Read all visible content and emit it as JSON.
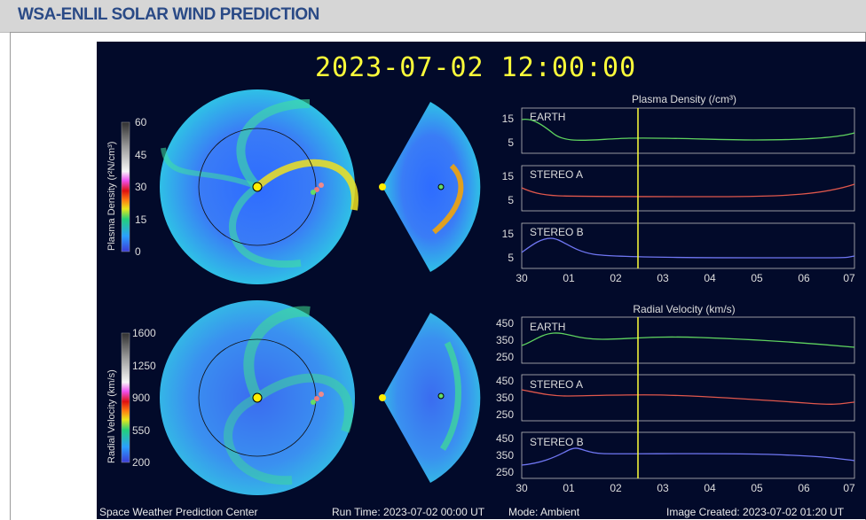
{
  "header": {
    "title": "WSA-ENLIL SOLAR WIND PREDICTION"
  },
  "panel": {
    "timestamp": "2023-07-02 12:00:00",
    "footer": {
      "center": "Space Weather Prediction Center",
      "run_time": "Run Time: 2023-07-02 00:00 UT",
      "mode": "Mode: Ambient",
      "image_created": "Image Created: 2023-07-02 01:20 UT"
    },
    "density_colorbar": {
      "label": "Plasma Density (r²N/cm³)",
      "ticks": [
        "60",
        "45",
        "30",
        "15",
        "0"
      ]
    },
    "velocity_colorbar": {
      "label": "Radial Velocity (km/s)",
      "ticks": [
        "1600",
        "1250",
        "900",
        "550",
        "200"
      ]
    },
    "density_plots": {
      "title": "Plasma Density (/cm³)",
      "rows": [
        {
          "name": "EARTH",
          "ticks": [
            "15",
            "5"
          ],
          "color": "#5fd35f"
        },
        {
          "name": "STEREO A",
          "ticks": [
            "15",
            "5"
          ],
          "color": "#e0574c"
        },
        {
          "name": "STEREO B",
          "ticks": [
            "15",
            "5"
          ],
          "color": "#6f76f2"
        }
      ],
      "xticks": [
        "30",
        "01",
        "02",
        "03",
        "04",
        "05",
        "06",
        "07"
      ]
    },
    "velocity_plots": {
      "title": "Radial Velocity (km/s)",
      "rows": [
        {
          "name": "EARTH",
          "ticks": [
            "450",
            "350",
            "250"
          ],
          "color": "#5fd35f"
        },
        {
          "name": "STEREO A",
          "ticks": [
            "450",
            "350",
            "250"
          ],
          "color": "#e0574c"
        },
        {
          "name": "STEREO B",
          "ticks": [
            "450",
            "350",
            "250"
          ],
          "color": "#6f76f2"
        }
      ],
      "xticks": [
        "30",
        "01",
        "02",
        "03",
        "04",
        "05",
        "06",
        "07"
      ]
    }
  }
}
